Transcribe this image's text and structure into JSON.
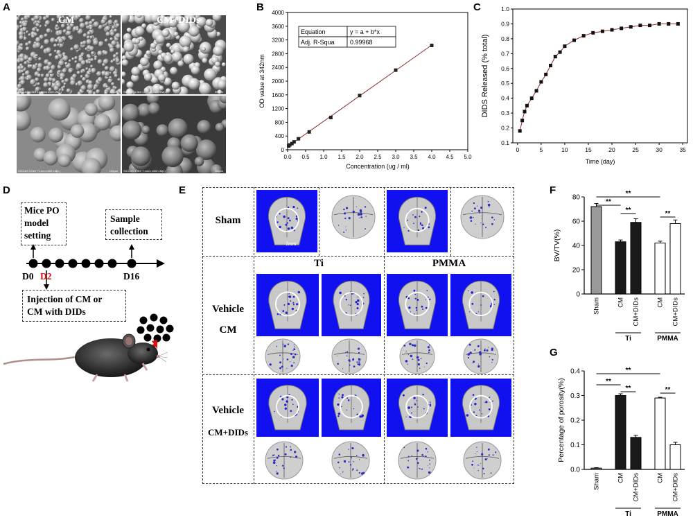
{
  "panels": {
    "A": {
      "label": "A",
      "col_cm": "CM",
      "col_cm_dids": "CM+DIDs",
      "scale_info": [
        "SICCAS 1.5kV 12.0mm x100 LM(L)",
        "SICCAS 1.5kV 12.0mm x100 LM(L)",
        "SICCAS 3.0kV 7.1mm x300 LM(L)",
        "SICCAS 3.0kV 7.1mm x300 LM(L)"
      ],
      "scale_bars": [
        "500µm",
        "500µm",
        "100µm",
        "100µm"
      ]
    },
    "B": {
      "label": "B"
    },
    "C": {
      "label": "C"
    },
    "D": {
      "label": "D",
      "box1": [
        "Mice PO",
        "model",
        "setting"
      ],
      "box2": [
        "Sample",
        "collection"
      ],
      "d0": "D0",
      "d2": "D2",
      "d16": "D16",
      "box3": [
        "Injection of CM or",
        "CM with DIDs"
      ]
    },
    "E": {
      "label": "E",
      "sham": "Sham",
      "ti": "Ti",
      "pmma": "PMMA",
      "vehicle1": "Vehicle",
      "cm": "CM",
      "vehicle2": "Vehicle",
      "cmdids": "CM+DIDs",
      "scalebar": "1mm"
    },
    "F": {
      "label": "F"
    },
    "G": {
      "label": "G"
    }
  },
  "colors": {
    "blue": "#1010f0",
    "dark_bar": "#1a1a1a",
    "gray_bar": "#9a9a9a",
    "red": "#e01010",
    "line_red": "#8b2c2c"
  },
  "chart_data": [
    {
      "id": "B",
      "type": "scatter",
      "xlabel": "Concentration (ug / ml)",
      "ylabel": "OD value at 342nm",
      "xlim": [
        0,
        5.0
      ],
      "ylim": [
        0,
        4000
      ],
      "xticks": [
        "0.0",
        "0.5",
        "1.0",
        "1.5",
        "2.0",
        "2.5",
        "3.0",
        "3.5",
        "4.0",
        "4.5",
        "5.0"
      ],
      "yticks": [
        "0",
        "400",
        "800",
        "1200",
        "1600",
        "2000",
        "2400",
        "2800",
        "3200",
        "3600",
        "4000"
      ],
      "x": [
        0.03,
        0.06,
        0.12,
        0.18,
        0.3,
        0.6,
        1.2,
        2.0,
        3.0,
        4.0
      ],
      "y": [
        110,
        140,
        180,
        230,
        320,
        520,
        940,
        1580,
        2320,
        3040
      ],
      "fit_line": {
        "x": [
          0,
          4.0
        ],
        "y": [
          90,
          3050
        ]
      },
      "table": [
        [
          "Equation",
          "y = a + b*x"
        ],
        [
          "Adj. R-Squa",
          "0.99968"
        ]
      ]
    },
    {
      "id": "C",
      "type": "line",
      "xlabel": "Time (day)",
      "ylabel": "DIDS Released (% total)",
      "xlim": [
        -1,
        36
      ],
      "ylim": [
        0.1,
        1.0
      ],
      "xticks": [
        "0",
        "5",
        "10",
        "15",
        "20",
        "25",
        "30",
        "35"
      ],
      "yticks": [
        "0.1",
        "0.2",
        "0.3",
        "0.4",
        "0.5",
        "0.6",
        "0.7",
        "0.8",
        "0.9",
        "1.0"
      ],
      "x": [
        0.5,
        1,
        1.5,
        2,
        3,
        4,
        5,
        6,
        7,
        8,
        9,
        10,
        12,
        14,
        16,
        18,
        20,
        22,
        24,
        26,
        28,
        30,
        32,
        34
      ],
      "y": [
        0.18,
        0.25,
        0.31,
        0.35,
        0.4,
        0.45,
        0.51,
        0.56,
        0.62,
        0.68,
        0.71,
        0.75,
        0.79,
        0.82,
        0.84,
        0.85,
        0.86,
        0.87,
        0.88,
        0.89,
        0.89,
        0.9,
        0.9,
        0.9
      ]
    },
    {
      "id": "F",
      "type": "bar",
      "ylabel": "BV/TV(%)",
      "ylim": [
        0,
        80
      ],
      "yticks": [
        "0",
        "20",
        "40",
        "60",
        "80"
      ],
      "categories": [
        "Sham",
        "CM",
        "CM+DIDs",
        "CM",
        "CM+DIDs"
      ],
      "values": [
        72,
        43,
        59,
        42,
        58
      ],
      "errors": [
        2.5,
        1.5,
        3,
        1.5,
        3
      ],
      "group_labels": [
        "Ti",
        "PMMA"
      ],
      "significance": "**"
    },
    {
      "id": "G",
      "type": "bar",
      "ylabel": "Percentage of porosity(%)",
      "ylim": [
        0,
        0.4
      ],
      "yticks": [
        "0.0",
        "0.1",
        "0.2",
        "0.3",
        "0.4"
      ],
      "categories": [
        "Sham",
        "CM",
        "CM+DIDs",
        "CM",
        "CM+DIDs"
      ],
      "values": [
        0.005,
        0.3,
        0.13,
        0.29,
        0.1
      ],
      "errors": [
        0.002,
        0.007,
        0.008,
        0.003,
        0.01
      ],
      "group_labels": [
        "Ti",
        "PMMA"
      ],
      "significance": "**"
    }
  ]
}
